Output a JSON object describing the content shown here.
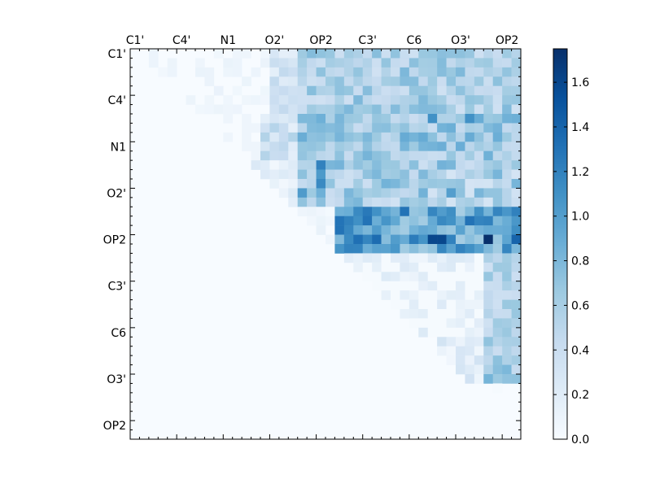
{
  "chart_data": {
    "type": "heatmap",
    "title": "",
    "xlabel": "",
    "ylabel": "",
    "x_tick_labels": [
      "C1'",
      "C4'",
      "N1",
      "O2'",
      "OP2",
      "C3'",
      "C6",
      "O3'",
      "OP2"
    ],
    "y_tick_labels": [
      "C1'",
      "C4'",
      "N1",
      "O2'",
      "OP2",
      "C3'",
      "C6",
      "O3'",
      "OP2"
    ],
    "matrix_size": 42,
    "upper_triangle_only": true,
    "colormap": "Blues",
    "colorbar": {
      "vmin": 0.0,
      "vmax": 1.75,
      "ticks": [
        "0.0",
        "0.2",
        "0.4",
        "0.6",
        "0.8",
        "1.0",
        "1.2",
        "1.4",
        "1.6"
      ]
    },
    "peak_cells": [
      {
        "row": 20,
        "col": 38,
        "value": 1.75
      },
      {
        "row": 20,
        "col": 32,
        "value": 1.6
      },
      {
        "row": 20,
        "col": 33,
        "value": 1.6
      },
      {
        "row": 19,
        "col": 22,
        "value": 1.3
      },
      {
        "row": 20,
        "col": 26,
        "value": 1.35
      },
      {
        "row": 20,
        "col": 41,
        "value": 1.4
      },
      {
        "row": 12,
        "col": 20,
        "value": 1.2
      },
      {
        "row": 14,
        "col": 20,
        "value": 1.15
      },
      {
        "row": 7,
        "col": 32,
        "value": 1.1
      },
      {
        "row": 7,
        "col": 36,
        "value": 1.1
      },
      {
        "row": 15,
        "col": 34,
        "value": 1.0
      }
    ]
  }
}
